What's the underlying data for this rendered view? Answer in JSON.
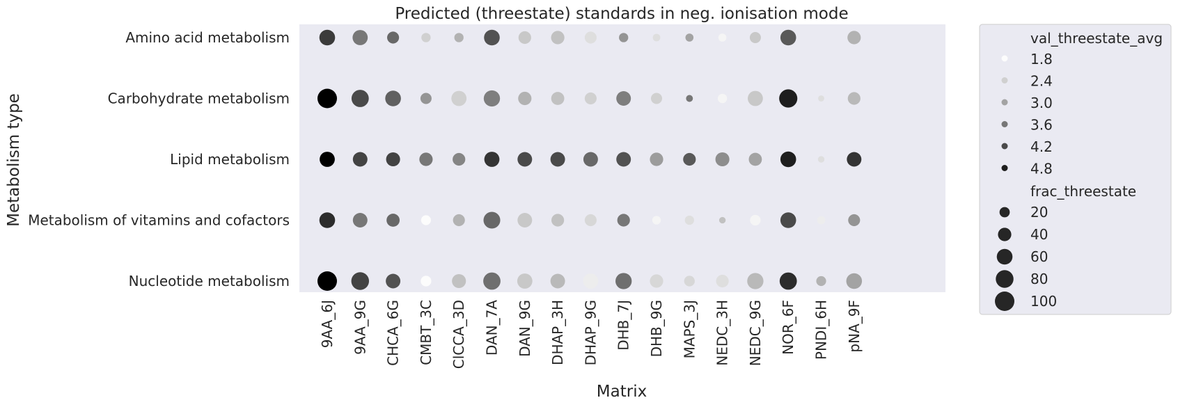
{
  "chart_data": {
    "type": "scatter",
    "title": "Predicted (threestate) standards in neg. ionisation mode",
    "xlabel": "Matrix",
    "ylabel": "Metabolism type",
    "x_categories": [
      "9AA_6J",
      "9AA_9G",
      "CHCA_6G",
      "CMBT_3C",
      "ClCCA_3D",
      "DAN_7A",
      "DAN_9G",
      "DHAP_3H",
      "DHAP_9G",
      "DHB_7J",
      "DHB_9G",
      "MAPS_3J",
      "NEDC_3H",
      "NEDC_9G",
      "NOR_6F",
      "PNDI_6H",
      "pNA_9F"
    ],
    "y_categories": [
      "Amino acid metabolism",
      "Carbohydrate metabolism",
      "Lipid metabolism",
      "Metabolism of vitamins and cofactors",
      "Nucleotide metabolism"
    ],
    "hue_variable": "val_threestate_avg",
    "size_variable": "frac_threestate",
    "background_color": "#eaeaf2",
    "grid": false,
    "legend_position": "outside right",
    "legend": {
      "hue_title": "val_threestate_avg",
      "hue_levels": [
        1.8,
        2.4,
        3.0,
        3.6,
        4.2,
        4.8
      ],
      "size_title": "frac_threestate",
      "size_levels": [
        20,
        40,
        60,
        80,
        100
      ]
    },
    "points": [
      {
        "x": "9AA_6J",
        "y": "Amino acid metabolism",
        "hue": 4.4,
        "size": 60
      },
      {
        "x": "9AA_9G",
        "y": "Amino acid metabolism",
        "hue": 3.6,
        "size": 55
      },
      {
        "x": "CHCA_6G",
        "y": "Amino acid metabolism",
        "hue": 3.8,
        "size": 30
      },
      {
        "x": "CMBT_3C",
        "y": "Amino acid metabolism",
        "hue": 2.4,
        "size": 15
      },
      {
        "x": "ClCCA_3D",
        "y": "Amino acid metabolism",
        "hue": 2.8,
        "size": 15
      },
      {
        "x": "DAN_7A",
        "y": "Amino acid metabolism",
        "hue": 4.1,
        "size": 60
      },
      {
        "x": "DAN_9G",
        "y": "Amino acid metabolism",
        "hue": 2.5,
        "size": 35
      },
      {
        "x": "DHAP_3H",
        "y": "Amino acid metabolism",
        "hue": 2.6,
        "size": 40
      },
      {
        "x": "DHAP_9G",
        "y": "Amino acid metabolism",
        "hue": 2.2,
        "size": 30
      },
      {
        "x": "DHB_7J",
        "y": "Amino acid metabolism",
        "hue": 3.2,
        "size": 15
      },
      {
        "x": "DHB_9G",
        "y": "Amino acid metabolism",
        "hue": 2.2,
        "size": 8
      },
      {
        "x": "MAPS_3J",
        "y": "Amino acid metabolism",
        "hue": 3.0,
        "size": 10
      },
      {
        "x": "NEDC_3H",
        "y": "Amino acid metabolism",
        "hue": 1.9,
        "size": 10
      },
      {
        "x": "NEDC_9G",
        "y": "Amino acid metabolism",
        "hue": 2.5,
        "size": 25
      },
      {
        "x": "NOR_6F",
        "y": "Amino acid metabolism",
        "hue": 4.0,
        "size": 60
      },
      {
        "x": "pNA_9F",
        "y": "Amino acid metabolism",
        "hue": 2.8,
        "size": 40
      },
      {
        "x": "9AA_6J",
        "y": "Carbohydrate metabolism",
        "hue": 5.2,
        "size": 100
      },
      {
        "x": "9AA_9G",
        "y": "Carbohydrate metabolism",
        "hue": 4.2,
        "size": 75
      },
      {
        "x": "CHCA_6G",
        "y": "Carbohydrate metabolism",
        "hue": 3.9,
        "size": 60
      },
      {
        "x": "CMBT_3C",
        "y": "Carbohydrate metabolism",
        "hue": 3.2,
        "size": 25
      },
      {
        "x": "ClCCA_3D",
        "y": "Carbohydrate metabolism",
        "hue": 2.4,
        "size": 55
      },
      {
        "x": "DAN_7A",
        "y": "Carbohydrate metabolism",
        "hue": 3.5,
        "size": 65
      },
      {
        "x": "DAN_9G",
        "y": "Carbohydrate metabolism",
        "hue": 2.8,
        "size": 40
      },
      {
        "x": "DHAP_3H",
        "y": "Carbohydrate metabolism",
        "hue": 2.6,
        "size": 38
      },
      {
        "x": "DHAP_9G",
        "y": "Carbohydrate metabolism",
        "hue": 2.4,
        "size": 30
      },
      {
        "x": "DHB_7J",
        "y": "Carbohydrate metabolism",
        "hue": 3.5,
        "size": 50
      },
      {
        "x": "DHB_9G",
        "y": "Carbohydrate metabolism",
        "hue": 2.4,
        "size": 25
      },
      {
        "x": "MAPS_3J",
        "y": "Carbohydrate metabolism",
        "hue": 3.6,
        "size": 6
      },
      {
        "x": "NEDC_3H",
        "y": "Carbohydrate metabolism",
        "hue": 1.9,
        "size": 15
      },
      {
        "x": "NEDC_9G",
        "y": "Carbohydrate metabolism",
        "hue": 2.5,
        "size": 55
      },
      {
        "x": "NOR_6F",
        "y": "Carbohydrate metabolism",
        "hue": 4.8,
        "size": 85
      },
      {
        "x": "PNDI_6H",
        "y": "Carbohydrate metabolism",
        "hue": 2.2,
        "size": 4
      },
      {
        "x": "pNA_9F",
        "y": "Carbohydrate metabolism",
        "hue": 2.7,
        "size": 35
      },
      {
        "x": "9AA_6J",
        "y": "Lipid metabolism",
        "hue": 5.2,
        "size": 55
      },
      {
        "x": "9AA_9G",
        "y": "Lipid metabolism",
        "hue": 4.3,
        "size": 50
      },
      {
        "x": "CHCA_6G",
        "y": "Lipid metabolism",
        "hue": 4.3,
        "size": 45
      },
      {
        "x": "CMBT_3C",
        "y": "Lipid metabolism",
        "hue": 3.6,
        "size": 40
      },
      {
        "x": "ClCCA_3D",
        "y": "Lipid metabolism",
        "hue": 3.4,
        "size": 35
      },
      {
        "x": "DAN_7A",
        "y": "Lipid metabolism",
        "hue": 4.5,
        "size": 55
      },
      {
        "x": "DAN_9G",
        "y": "Lipid metabolism",
        "hue": 4.2,
        "size": 50
      },
      {
        "x": "DHAP_3H",
        "y": "Lipid metabolism",
        "hue": 4.2,
        "size": 50
      },
      {
        "x": "DHAP_9G",
        "y": "Lipid metabolism",
        "hue": 3.8,
        "size": 50
      },
      {
        "x": "DHB_7J",
        "y": "Lipid metabolism",
        "hue": 4.1,
        "size": 50
      },
      {
        "x": "DHB_9G",
        "y": "Lipid metabolism",
        "hue": 3.1,
        "size": 40
      },
      {
        "x": "MAPS_3J",
        "y": "Lipid metabolism",
        "hue": 4.0,
        "size": 35
      },
      {
        "x": "NEDC_3H",
        "y": "Lipid metabolism",
        "hue": 3.3,
        "size": 45
      },
      {
        "x": "NEDC_9G",
        "y": "Lipid metabolism",
        "hue": 3.0,
        "size": 38
      },
      {
        "x": "NOR_6F",
        "y": "Lipid metabolism",
        "hue": 4.8,
        "size": 60
      },
      {
        "x": "PNDI_6H",
        "y": "Lipid metabolism",
        "hue": 2.2,
        "size": 5
      },
      {
        "x": "pNA_9F",
        "y": "Lipid metabolism",
        "hue": 4.5,
        "size": 50
      },
      {
        "x": "9AA_6J",
        "y": "Metabolism of vitamins and cofactors",
        "hue": 4.6,
        "size": 60
      },
      {
        "x": "9AA_9G",
        "y": "Metabolism of vitamins and cofactors",
        "hue": 3.6,
        "size": 50
      },
      {
        "x": "CHCA_6G",
        "y": "Metabolism of vitamins and cofactors",
        "hue": 3.8,
        "size": 38
      },
      {
        "x": "CMBT_3C",
        "y": "Metabolism of vitamins and cofactors",
        "hue": 1.8,
        "size": 18
      },
      {
        "x": "ClCCA_3D",
        "y": "Metabolism of vitamins and cofactors",
        "hue": 2.8,
        "size": 30
      },
      {
        "x": "DAN_7A",
        "y": "Metabolism of vitamins and cofactors",
        "hue": 3.8,
        "size": 70
      },
      {
        "x": "DAN_9G",
        "y": "Metabolism of vitamins and cofactors",
        "hue": 2.5,
        "size": 50
      },
      {
        "x": "DHAP_3H",
        "y": "Metabolism of vitamins and cofactors",
        "hue": 2.6,
        "size": 35
      },
      {
        "x": "DHAP_9G",
        "y": "Metabolism of vitamins and cofactors",
        "hue": 2.3,
        "size": 30
      },
      {
        "x": "DHB_7J",
        "y": "Metabolism of vitamins and cofactors",
        "hue": 3.6,
        "size": 35
      },
      {
        "x": "DHB_9G",
        "y": "Metabolism of vitamins and cofactors",
        "hue": 1.9,
        "size": 12
      },
      {
        "x": "MAPS_3J",
        "y": "Metabolism of vitamins and cofactors",
        "hue": 2.2,
        "size": 15
      },
      {
        "x": "NEDC_3H",
        "y": "Metabolism of vitamins and cofactors",
        "hue": 2.6,
        "size": 5
      },
      {
        "x": "NEDC_9G",
        "y": "Metabolism of vitamins and cofactors",
        "hue": 1.9,
        "size": 22
      },
      {
        "x": "NOR_6F",
        "y": "Metabolism of vitamins and cofactors",
        "hue": 4.2,
        "size": 60
      },
      {
        "x": "PNDI_6H",
        "y": "Metabolism of vitamins and cofactors",
        "hue": 2.0,
        "size": 10
      },
      {
        "x": "pNA_9F",
        "y": "Metabolism of vitamins and cofactors",
        "hue": 3.2,
        "size": 30
      },
      {
        "x": "9AA_6J",
        "y": "Nucleotide metabolism",
        "hue": 5.2,
        "size": 100
      },
      {
        "x": "9AA_9G",
        "y": "Nucleotide metabolism",
        "hue": 4.3,
        "size": 80
      },
      {
        "x": "CHCA_6G",
        "y": "Nucleotide metabolism",
        "hue": 4.1,
        "size": 50
      },
      {
        "x": "CMBT_3C",
        "y": "Nucleotide metabolism",
        "hue": 1.8,
        "size": 22
      },
      {
        "x": "ClCCA_3D",
        "y": "Nucleotide metabolism",
        "hue": 2.6,
        "size": 45
      },
      {
        "x": "DAN_7A",
        "y": "Nucleotide metabolism",
        "hue": 3.7,
        "size": 75
      },
      {
        "x": "DAN_9G",
        "y": "Nucleotide metabolism",
        "hue": 2.5,
        "size": 55
      },
      {
        "x": "DHAP_3H",
        "y": "Nucleotide metabolism",
        "hue": 2.7,
        "size": 50
      },
      {
        "x": "DHAP_9G",
        "y": "Nucleotide metabolism",
        "hue": 2.0,
        "size": 55
      },
      {
        "x": "DHB_7J",
        "y": "Nucleotide metabolism",
        "hue": 3.7,
        "size": 65
      },
      {
        "x": "DHB_9G",
        "y": "Nucleotide metabolism",
        "hue": 2.3,
        "size": 40
      },
      {
        "x": "MAPS_3J",
        "y": "Nucleotide metabolism",
        "hue": 2.3,
        "size": 22
      },
      {
        "x": "NEDC_3H",
        "y": "Nucleotide metabolism",
        "hue": 2.2,
        "size": 35
      },
      {
        "x": "NEDC_9G",
        "y": "Nucleotide metabolism",
        "hue": 2.7,
        "size": 65
      },
      {
        "x": "NOR_6F",
        "y": "Nucleotide metabolism",
        "hue": 4.6,
        "size": 75
      },
      {
        "x": "PNDI_6H",
        "y": "Nucleotide metabolism",
        "hue": 2.8,
        "size": 18
      },
      {
        "x": "pNA_9F",
        "y": "Nucleotide metabolism",
        "hue": 3.0,
        "size": 60
      }
    ]
  }
}
